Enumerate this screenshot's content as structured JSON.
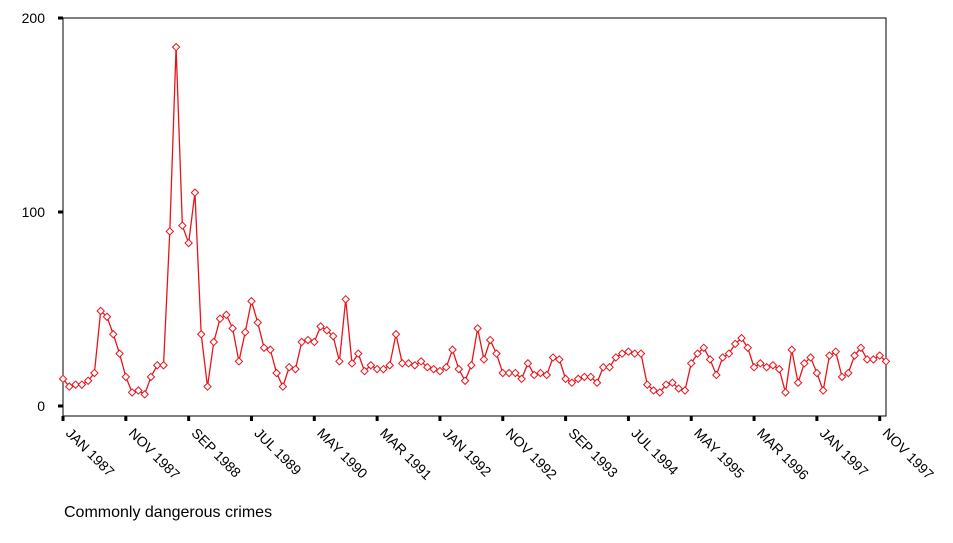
{
  "chart_data": {
    "type": "line",
    "title": "",
    "xlabel": "",
    "ylabel": "",
    "series_name": "Commonly dangerous crimes",
    "color": "#e8141c",
    "ylim": [
      0,
      200
    ],
    "y_ticks": [
      0,
      100,
      200
    ],
    "x_tick_labels": [
      "JAN 1987",
      "NOV 1987",
      "SEP 1988",
      "JUL 1989",
      "MAY 1990",
      "MAR 1991",
      "JAN 1992",
      "NOV 1992",
      "SEP 1993",
      "JUL 1994",
      "MAY 1995",
      "MAR 1996",
      "JAN 1997",
      "NOV 1997"
    ],
    "x_tick_every_months": 10,
    "marker": "diamond",
    "grid": false,
    "legend": "none",
    "months_from": "JAN 1987",
    "values": [
      14,
      10,
      11,
      11,
      13,
      17,
      49,
      46,
      37,
      27,
      15,
      7,
      8,
      6,
      15,
      21,
      21,
      90,
      185,
      93,
      84,
      110,
      37,
      10,
      33,
      45,
      47,
      40,
      23,
      38,
      54,
      43,
      30,
      29,
      17,
      10,
      20,
      19,
      33,
      34,
      33,
      41,
      39,
      36,
      23,
      55,
      22,
      27,
      18,
      21,
      19,
      19,
      21,
      37,
      22,
      22,
      21,
      23,
      20,
      19,
      18,
      20,
      29,
      19,
      13,
      21,
      40,
      24,
      34,
      27,
      17,
      17,
      17,
      14,
      22,
      16,
      17,
      16,
      25,
      24,
      14,
      12,
      14,
      15,
      15,
      12,
      20,
      20,
      25,
      27,
      28,
      27,
      27,
      11,
      8,
      7,
      11,
      12,
      9,
      8,
      22,
      27,
      30,
      24,
      16,
      25,
      27,
      32,
      35,
      30,
      20,
      22,
      20,
      21,
      19,
      7,
      29,
      12,
      22,
      25,
      17,
      8,
      26,
      28,
      15,
      17,
      26,
      30,
      24,
      24,
      26,
      23
    ]
  },
  "caption": "Commonly dangerous crimes"
}
